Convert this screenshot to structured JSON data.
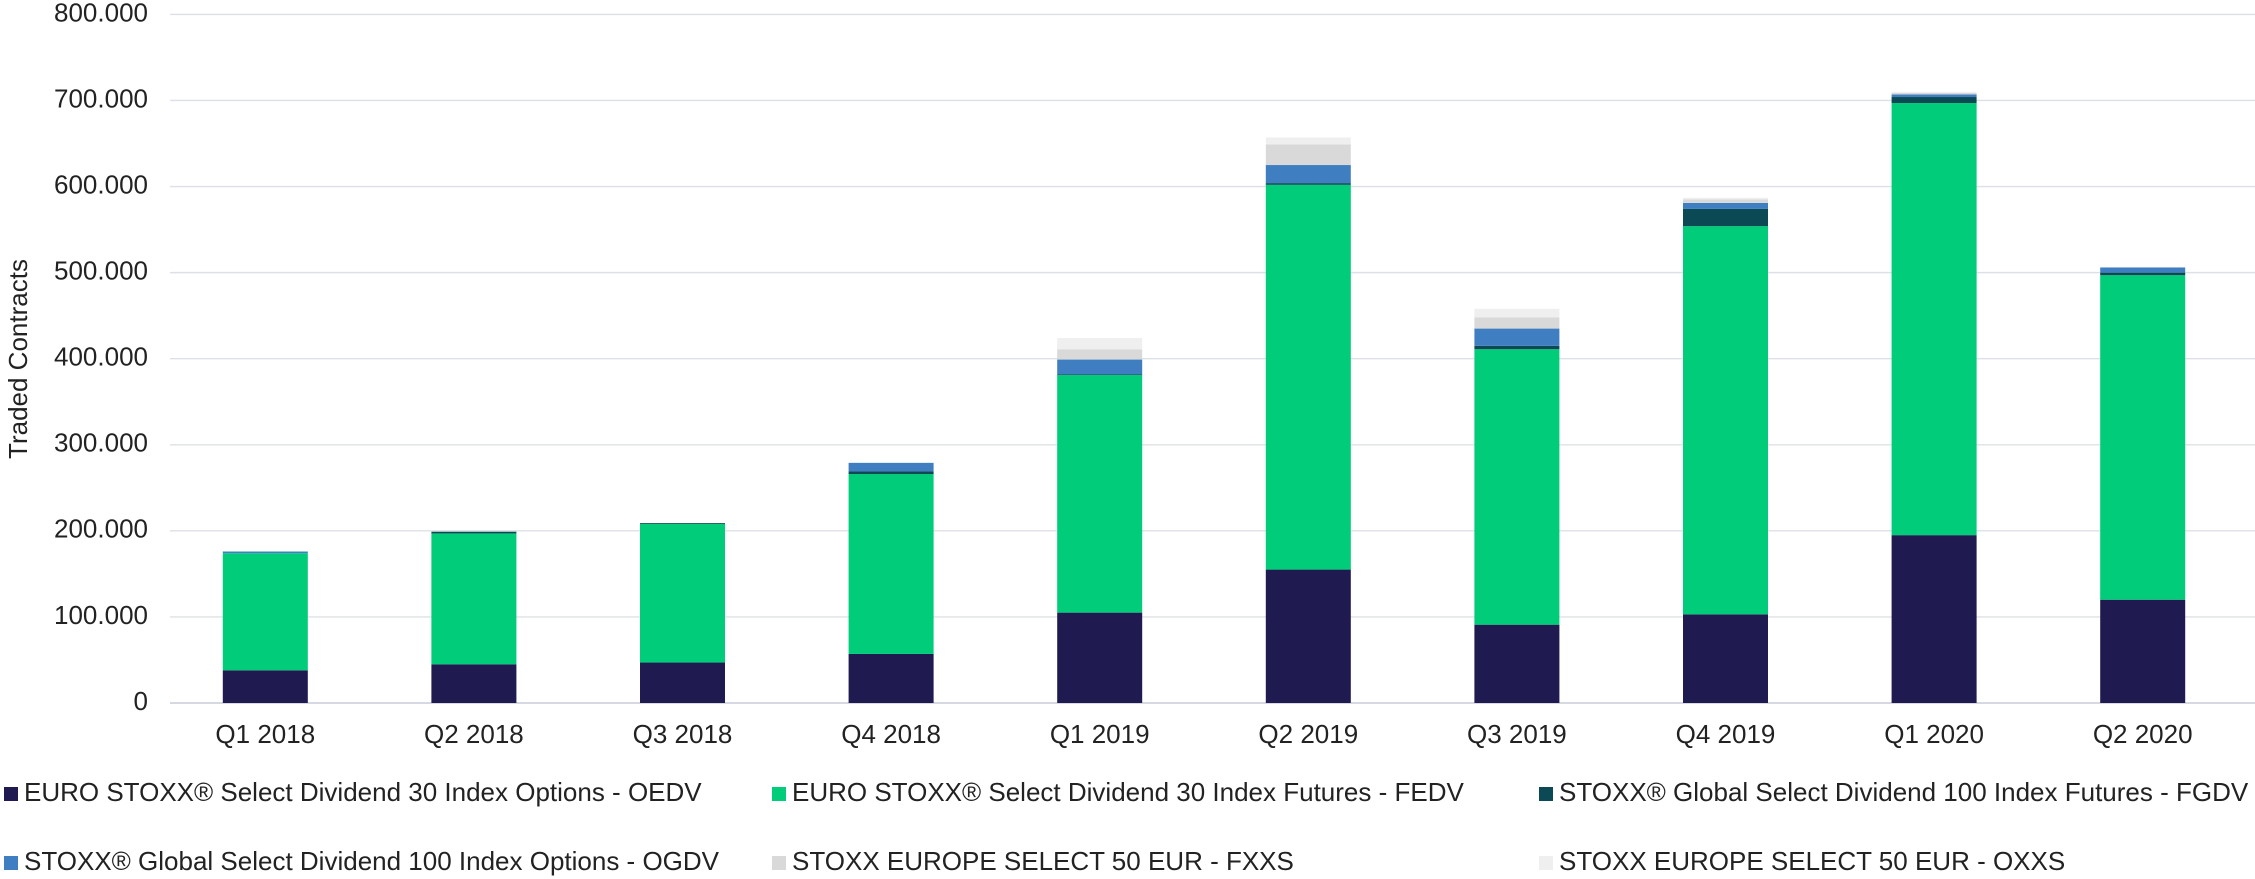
{
  "chart_data": {
    "type": "stacked_bar",
    "y_label": "Traded Contracts",
    "categories": [
      "Q1 2018",
      "Q2 2018",
      "Q3 2018",
      "Q4 2018",
      "Q1 2019",
      "Q2 2019",
      "Q3 2019",
      "Q4 2019",
      "Q1 2020",
      "Q2 2020"
    ],
    "series": [
      {
        "name": "EURO STOXX® Select Dividend 30 Index Options - OEDV",
        "color": "#1f1a4f",
        "values": [
          38000,
          45000,
          47000,
          57000,
          105000,
          155000,
          91000,
          103000,
          195000,
          120000
        ]
      },
      {
        "name": "EURO STOXX® Select Dividend 30 Index Futures - FEDV",
        "color": "#00cc7a",
        "values": [
          136000,
          152000,
          161000,
          209000,
          276000,
          447000,
          320000,
          451000,
          502000,
          377000
        ]
      },
      {
        "name": "STOXX® Global Select Dividend 100 Index Futures - FGDV",
        "color": "#0b4a55",
        "values": [
          0,
          2000,
          1000,
          3000,
          1000,
          2000,
          4000,
          20000,
          7000,
          3000
        ]
      },
      {
        "name": "STOXX® Global Select Dividend 100 Index Options - OGDV",
        "color": "#3f7fc1",
        "values": [
          2000,
          0,
          0,
          10000,
          17000,
          21000,
          20000,
          7000,
          3000,
          6000
        ]
      },
      {
        "name": "STOXX EUROPE SELECT 50 EUR - FXXS",
        "color": "#d9d9d9",
        "values": [
          0,
          0,
          0,
          0,
          12000,
          24000,
          13000,
          4000,
          2000,
          0
        ]
      },
      {
        "name": "STOXX EUROPE SELECT 50 EUR - OXXS",
        "color": "#efefef",
        "values": [
          0,
          0,
          0,
          0,
          13000,
          8000,
          10000,
          2000,
          1000,
          0
        ]
      }
    ],
    "ylim": [
      0,
      800000
    ],
    "yticks": [
      0,
      {
        "value": 100000,
        "label": "100.000"
      },
      {
        "value": 200000,
        "label": "200.000"
      },
      {
        "value": 300000,
        "label": "300.000"
      },
      {
        "value": 400000,
        "label": "400.000"
      },
      {
        "value": 500000,
        "label": "500.000"
      },
      {
        "value": 600000,
        "label": "600.000"
      },
      {
        "value": 700000,
        "label": "700.000"
      },
      {
        "value": 800000,
        "label": "800.000"
      }
    ],
    "grid": true,
    "legend": "bottom"
  }
}
